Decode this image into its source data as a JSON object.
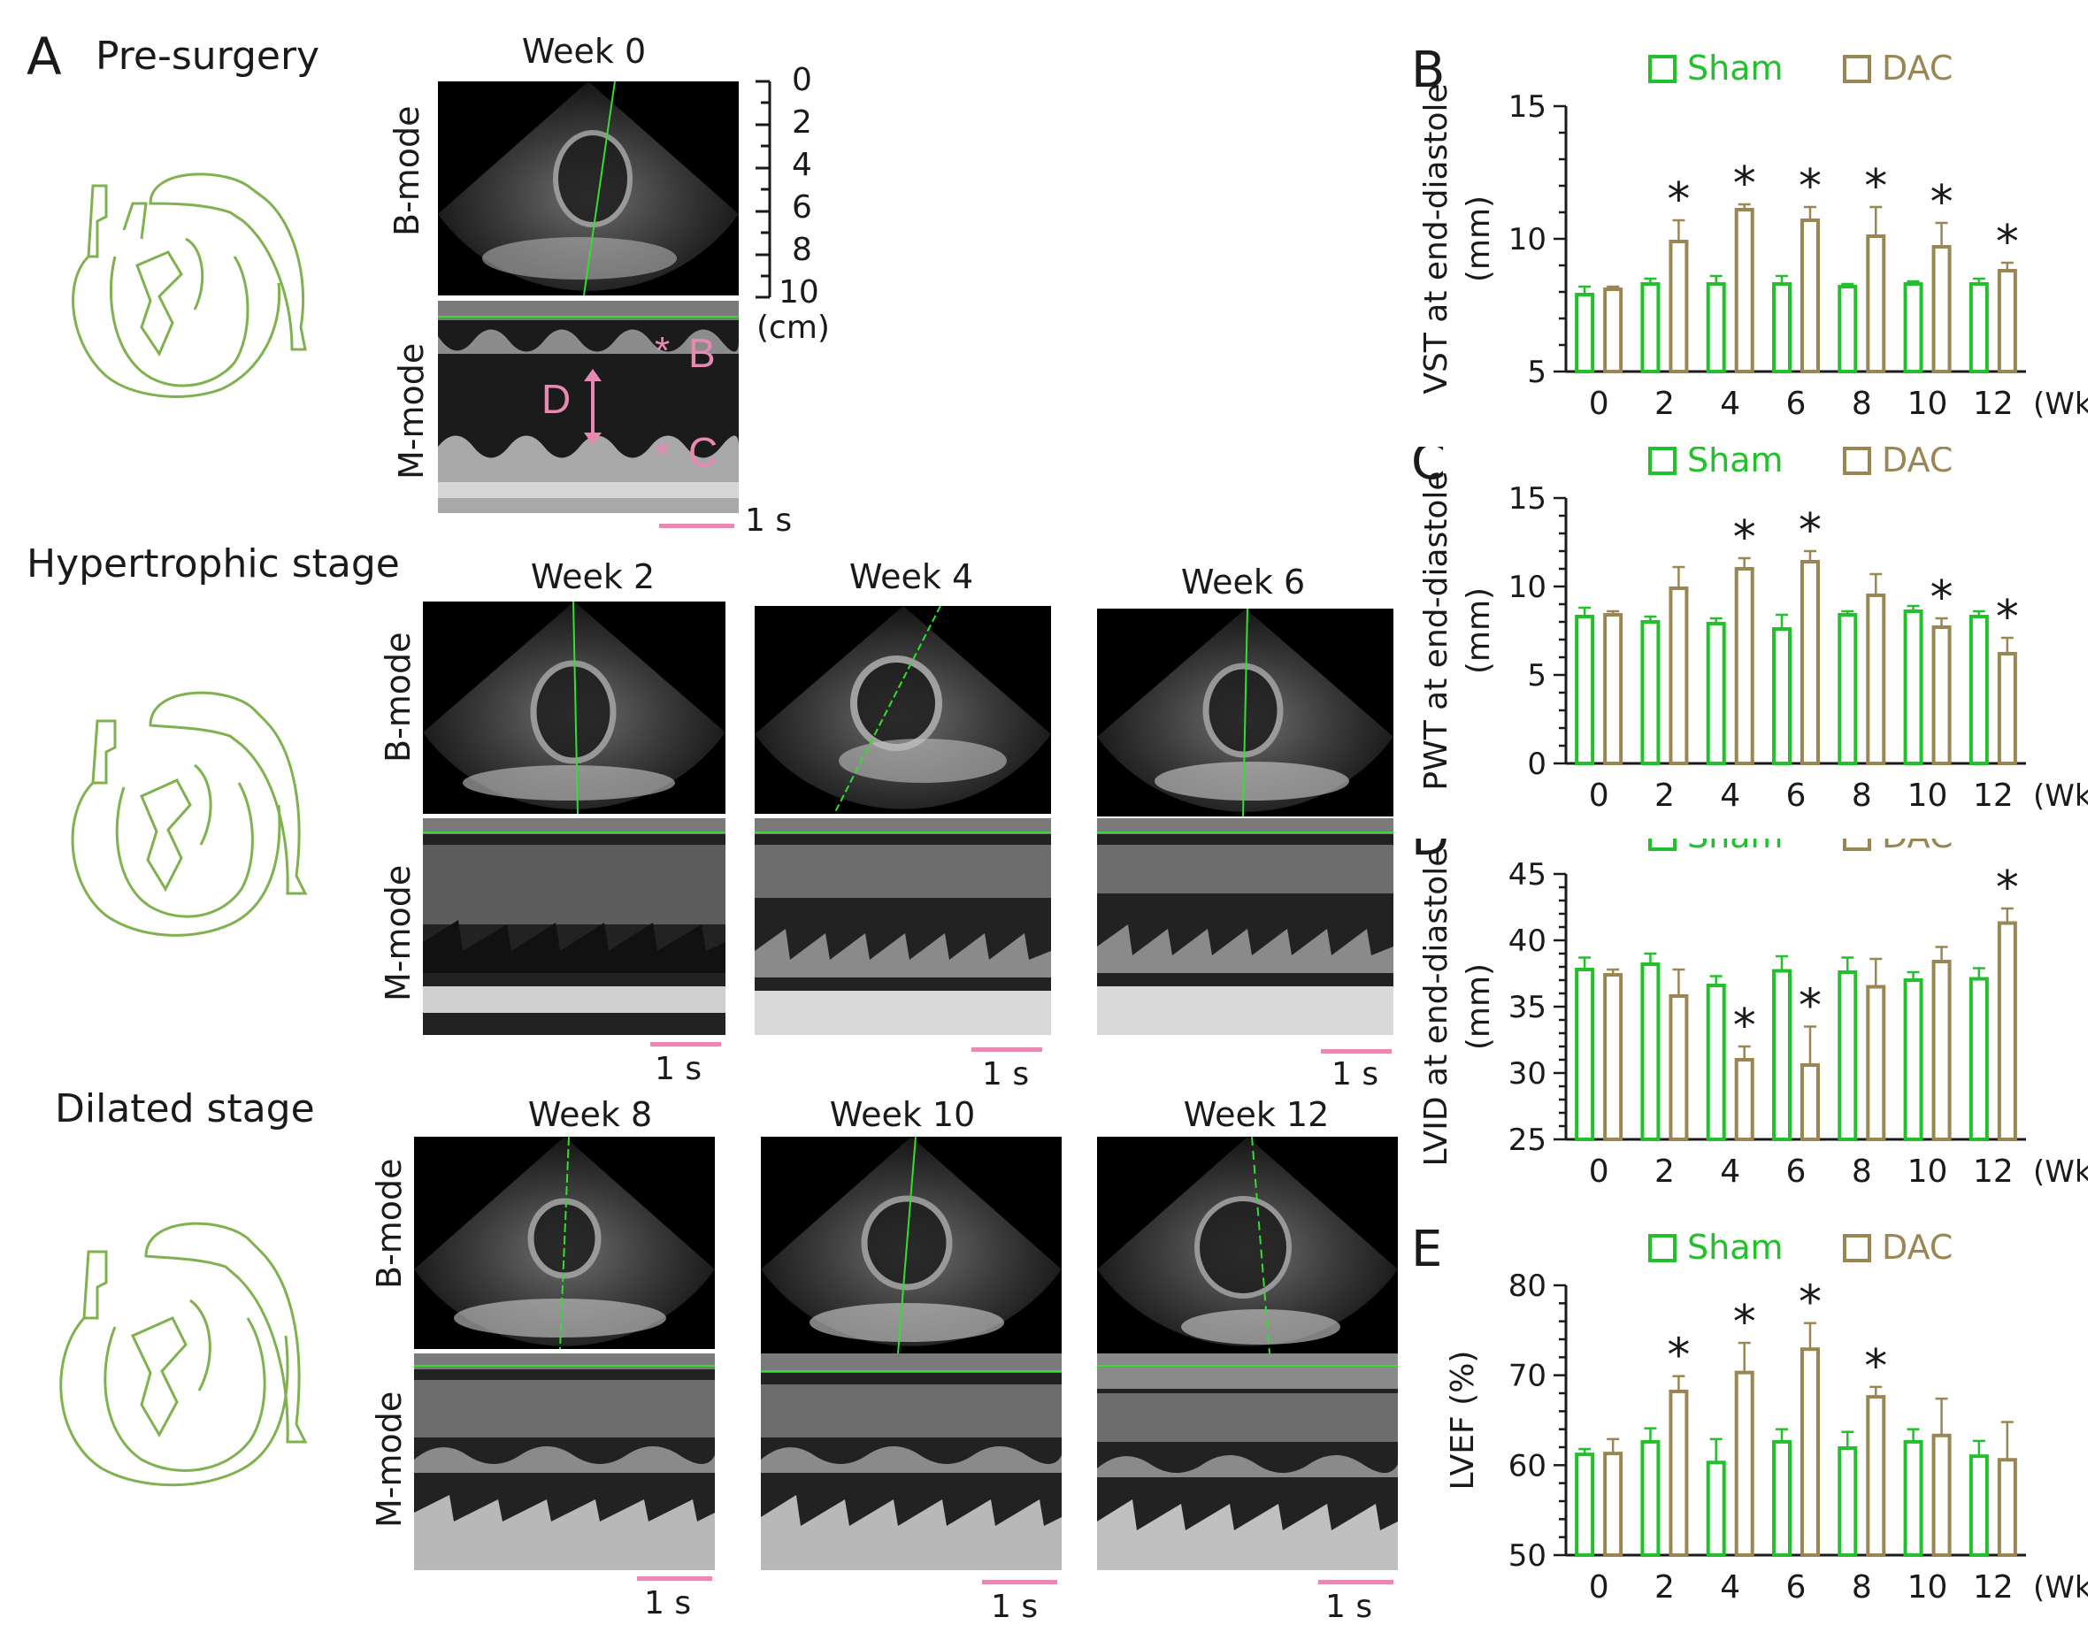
{
  "panel_a": {
    "letter": "A",
    "stages": [
      {
        "title": "Pre-surgery",
        "weeks": [
          "Week 0"
        ]
      },
      {
        "title": "Hypertrophic stage",
        "weeks": [
          "Week 2",
          "Week 4",
          "Week 6"
        ]
      },
      {
        "title": "Dilated stage",
        "weeks": [
          "Week 8",
          "Week 10",
          "Week 12"
        ]
      }
    ],
    "bmode_label": "B-mode",
    "mmode_label": "M-mode",
    "scale_label": "1 s",
    "depth_ticks": [
      "0",
      "2",
      "4",
      "6",
      "8",
      "10"
    ],
    "depth_unit": "(cm)",
    "annotations": {
      "b": "B",
      "c": "C",
      "d": "D",
      "star": "*"
    }
  },
  "colors": {
    "sham": "#22c02a",
    "dac": "#9a8653",
    "scale": "#e889b3",
    "annot": "#e889b3",
    "heart": "#7fb14f"
  },
  "chart_data": [
    {
      "type": "bar",
      "letter": "B",
      "title": "",
      "ylabel": "VST at end-diastole\n(mm)",
      "ylabel_lines": [
        "VST at end-diastole",
        "(mm)"
      ],
      "xunit": "(Wk)",
      "categories": [
        "0",
        "2",
        "4",
        "6",
        "8",
        "10",
        "12"
      ],
      "ylim": [
        5,
        15
      ],
      "yticks": [
        5,
        10,
        15
      ],
      "legend": [
        "Sham",
        "DAC"
      ],
      "series": [
        {
          "name": "Sham",
          "values": [
            7.9,
            8.3,
            8.3,
            8.3,
            8.2,
            8.3,
            8.3
          ],
          "errors": [
            0.3,
            0.2,
            0.3,
            0.3,
            0.1,
            0.1,
            0.2
          ]
        },
        {
          "name": "DAC",
          "values": [
            8.1,
            9.9,
            11.1,
            10.7,
            10.1,
            9.7,
            8.8
          ],
          "errors": [
            0.1,
            0.8,
            0.2,
            0.5,
            1.1,
            0.9,
            0.3
          ]
        }
      ],
      "significant": [
        false,
        true,
        true,
        true,
        true,
        true,
        true
      ]
    },
    {
      "type": "bar",
      "letter": "C",
      "title": "",
      "ylabel": "PWT at end-diastole\n(mm)",
      "ylabel_lines": [
        "PWT at end-diastole",
        "(mm)"
      ],
      "xunit": "(Wk)",
      "categories": [
        "0",
        "2",
        "4",
        "6",
        "8",
        "10",
        "12"
      ],
      "ylim": [
        0,
        15
      ],
      "yticks": [
        0,
        5,
        10,
        15
      ],
      "legend": [
        "Sham",
        "DAC"
      ],
      "series": [
        {
          "name": "Sham",
          "values": [
            8.3,
            8.0,
            7.9,
            7.6,
            8.4,
            8.6,
            8.3
          ],
          "errors": [
            0.5,
            0.3,
            0.3,
            0.8,
            0.2,
            0.3,
            0.3
          ]
        },
        {
          "name": "DAC",
          "values": [
            8.4,
            9.9,
            11.0,
            11.4,
            9.5,
            7.7,
            6.2
          ],
          "errors": [
            0.2,
            1.2,
            0.6,
            0.6,
            1.2,
            0.5,
            0.9
          ]
        }
      ],
      "significant": [
        false,
        false,
        true,
        true,
        false,
        true,
        true
      ]
    },
    {
      "type": "bar",
      "letter": "D",
      "title": "",
      "ylabel": "LVID at end-diastole\n(mm)",
      "ylabel_lines": [
        "LVID at end-diastole",
        "(mm)"
      ],
      "xunit": "(Wk)",
      "categories": [
        "0",
        "2",
        "4",
        "6",
        "8",
        "10",
        "12"
      ],
      "ylim": [
        25,
        45
      ],
      "yticks": [
        25,
        30,
        35,
        40,
        45
      ],
      "legend": [
        "Sham",
        "DAC"
      ],
      "series": [
        {
          "name": "Sham",
          "values": [
            37.8,
            38.2,
            36.6,
            37.7,
            37.6,
            37.0,
            37.1
          ],
          "errors": [
            0.9,
            0.8,
            0.7,
            1.1,
            1.1,
            0.6,
            0.8
          ]
        },
        {
          "name": "DAC",
          "values": [
            37.4,
            35.8,
            31.0,
            30.6,
            36.5,
            38.4,
            41.3
          ],
          "errors": [
            0.4,
            2.0,
            1.0,
            2.9,
            2.1,
            1.1,
            1.1
          ]
        }
      ],
      "significant": [
        false,
        false,
        true,
        true,
        false,
        false,
        true
      ]
    },
    {
      "type": "bar",
      "letter": "E",
      "title": "",
      "ylabel": "LVEF (%)",
      "ylabel_lines": [
        "LVEF (%)"
      ],
      "xunit": "(Wk)",
      "categories": [
        "0",
        "2",
        "4",
        "6",
        "8",
        "10",
        "12"
      ],
      "ylim": [
        50,
        80
      ],
      "yticks": [
        50,
        60,
        70,
        80
      ],
      "legend": [
        "Sham",
        "DAC"
      ],
      "series": [
        {
          "name": "Sham",
          "values": [
            61.2,
            62.6,
            60.3,
            62.6,
            61.9,
            62.6,
            61.0
          ],
          "errors": [
            0.6,
            1.5,
            2.6,
            1.4,
            1.8,
            1.4,
            1.7
          ]
        },
        {
          "name": "DAC",
          "values": [
            61.3,
            68.2,
            70.3,
            72.9,
            67.6,
            63.3,
            60.6
          ],
          "errors": [
            1.6,
            1.7,
            3.3,
            2.9,
            1.1,
            4.1,
            4.2
          ]
        }
      ],
      "significant": [
        false,
        true,
        true,
        true,
        true,
        false,
        false
      ]
    }
  ]
}
